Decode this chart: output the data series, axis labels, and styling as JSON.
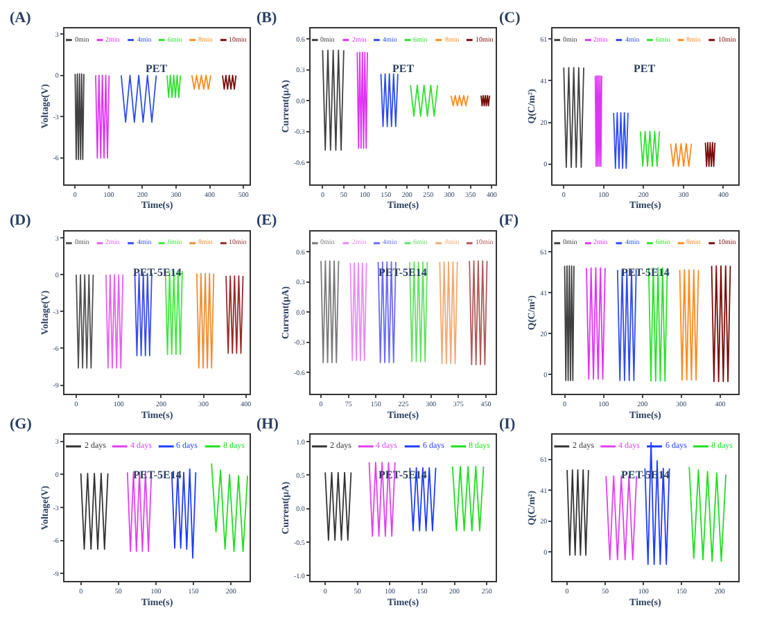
{
  "chart_data": [
    {
      "type": "line",
      "title": "PET",
      "xlabel": "Time(s)",
      "ylabel": "Voltage(V)",
      "annotations": [
        "(A)"
      ],
      "legend": "top",
      "xlim": [
        -32,
        519
      ],
      "xticks": [
        0,
        100,
        200,
        300,
        400,
        500
      ],
      "ylim": [
        -7.9,
        3.4
      ],
      "yticks": [
        3,
        0,
        -3,
        -6
      ],
      "series": [
        {
          "name": "0min",
          "color": "#404040",
          "x": [
            0,
            3.25,
            6.5,
            9.75,
            13,
            16.25,
            19.5,
            22.75,
            26
          ],
          "values": [
            0.1,
            -6.1,
            0.1,
            -6.1,
            0.1,
            -6.1,
            0.1,
            -6.1,
            0.1
          ]
        },
        {
          "name": "2min",
          "color": "#e033f5",
          "x": [
            61,
            66,
            71,
            76,
            81,
            86,
            91,
            96,
            101
          ],
          "values": [
            0,
            -6.0,
            0,
            -6.0,
            0,
            -6.0,
            0,
            -6.0,
            0
          ]
        },
        {
          "name": "4min",
          "color": "#2e4bf0",
          "x": [
            137,
            150,
            163,
            176,
            189,
            202,
            215,
            228,
            241
          ],
          "values": [
            0,
            -3.4,
            0,
            -3.4,
            0,
            -3.4,
            0,
            -3.4,
            0
          ]
        },
        {
          "name": "6min",
          "color": "#2ee02e",
          "x": [
            273,
            278,
            283,
            288,
            293,
            298,
            303,
            308,
            313
          ],
          "values": [
            0,
            -1.6,
            0,
            -1.6,
            0,
            -1.6,
            0,
            -1.6,
            0
          ]
        },
        {
          "name": "8min",
          "color": "#ff8a1c",
          "x": [
            347,
            354,
            361,
            368,
            375,
            382,
            389,
            396,
            403
          ],
          "values": [
            0,
            -1.0,
            0,
            -1.0,
            0,
            -1.0,
            0,
            -1.0,
            0
          ]
        },
        {
          "name": "10min",
          "color": "#7a0a0a",
          "x": [
            438,
            443,
            448,
            453,
            458,
            463,
            468,
            473,
            478
          ],
          "values": [
            0,
            -1.0,
            0,
            -1.0,
            0,
            -1.0,
            0,
            -1.0,
            0
          ]
        }
      ]
    },
    {
      "type": "line",
      "title": "PET",
      "xlabel": "Time(s)",
      "ylabel": "Current(μA)",
      "annotations": [
        "(B)"
      ],
      "legend": "top",
      "xlim": [
        -29,
        410
      ],
      "xticks": [
        0,
        50,
        100,
        150,
        200,
        250,
        300,
        350,
        400
      ],
      "ylim": [
        -0.81,
        0.7
      ],
      "yticks": [
        0.6,
        0.3,
        {
          "value": 0,
          "label": "0.0"
        },
        -0.3,
        -0.6
      ],
      "series": [
        {
          "name": "0min",
          "color": "#404040",
          "x": [
            0,
            6.25,
            12.5,
            18.75,
            25,
            31.25,
            37.5,
            43.75,
            50
          ],
          "values": [
            0.49,
            -0.48,
            0.49,
            -0.48,
            0.49,
            -0.48,
            0.49,
            -0.48,
            0.49
          ]
        },
        {
          "name": "2min",
          "color": "#e033f5",
          "x": [
            82,
            85,
            88,
            91,
            94,
            97,
            100,
            103,
            106
          ],
          "values": [
            0.47,
            -0.46,
            0.47,
            -0.46,
            0.47,
            -0.46,
            0.47,
            -0.46,
            0.47
          ]
        },
        {
          "name": "4min",
          "color": "#2e4bf0",
          "x": [
            138,
            143,
            148,
            153,
            158,
            163,
            168,
            173,
            178
          ],
          "values": [
            0.26,
            -0.25,
            0.26,
            -0.25,
            0.26,
            -0.25,
            0.26,
            -0.25,
            0.26
          ]
        },
        {
          "name": "6min",
          "color": "#2ee02e",
          "x": [
            208,
            216,
            224,
            232,
            240,
            248,
            256,
            264,
            272
          ],
          "values": [
            0.15,
            -0.15,
            0.15,
            -0.15,
            0.15,
            -0.15,
            0.15,
            -0.15,
            0.15
          ]
        },
        {
          "name": "8min",
          "color": "#ff8a1c",
          "x": [
            304,
            309,
            314,
            319,
            324,
            329,
            334,
            339,
            344
          ],
          "values": [
            0.05,
            -0.05,
            0.05,
            -0.05,
            0.05,
            -0.05,
            0.05,
            -0.05,
            0.05
          ]
        },
        {
          "name": "10min",
          "color": "#7a0a0a",
          "x": [
            375,
            377.5,
            380,
            382.5,
            385,
            387.5,
            390,
            392.5,
            395
          ],
          "values": [
            0.05,
            -0.05,
            0.05,
            -0.05,
            0.05,
            -0.05,
            0.05,
            -0.05,
            0.05
          ]
        }
      ]
    },
    {
      "type": "line",
      "title": "PET",
      "xlabel": "Time(s)",
      "ylabel": "Q(C/m²)",
      "annotations": [
        "(C)"
      ],
      "legend": "top",
      "xlim": [
        -28,
        437
      ],
      "xticks": [
        0,
        100,
        200,
        300,
        400
      ],
      "ylim": [
        -9.7,
        66
      ],
      "yticks": [
        0,
        {
          "value": 20.3,
          "label": "20"
        },
        {
          "value": 40.7,
          "label": "41"
        },
        61
      ],
      "series": [
        {
          "name": "0min",
          "color": "#404040",
          "x": [
            0,
            6.25,
            12.5,
            18.75,
            25,
            31.25,
            37.5,
            43.75,
            50
          ],
          "values": [
            47,
            -1.5,
            47,
            -1.5,
            47,
            -1.5,
            47,
            -1.5,
            47
          ]
        },
        {
          "name": "2min",
          "color": "#e033f5",
          "x": [
            79,
            81,
            83,
            85,
            87,
            89,
            91,
            93,
            95
          ],
          "values": [
            43,
            -1,
            43,
            -1,
            43,
            -1,
            43,
            -1,
            43
          ]
        },
        {
          "name": "4min",
          "color": "#2e4bf0",
          "x": [
            125,
            129.5,
            134,
            138.5,
            143,
            147.5,
            152,
            156.5,
            161
          ],
          "values": [
            25,
            -2,
            25,
            -2,
            25,
            -2,
            25,
            -2,
            25
          ]
        },
        {
          "name": "6min",
          "color": "#2ee02e",
          "x": [
            192,
            198,
            204,
            210,
            216,
            222,
            228,
            234,
            240
          ],
          "values": [
            16,
            -1,
            16,
            -1,
            16,
            -1,
            16,
            -1,
            16
          ]
        },
        {
          "name": "8min",
          "color": "#ff8a1c",
          "x": [
            268,
            274.5,
            281,
            287.5,
            294,
            300.5,
            307,
            313.5,
            320
          ],
          "values": [
            10,
            -1,
            10,
            -1,
            10,
            -1,
            10,
            -1,
            10
          ]
        },
        {
          "name": "10min",
          "color": "#7a0a0a",
          "x": [
            355,
            358,
            361,
            364,
            367,
            370,
            373,
            376,
            379
          ],
          "values": [
            10.5,
            -1,
            10.5,
            -1,
            10.5,
            -1,
            10.5,
            -1,
            10.5
          ]
        }
      ]
    },
    {
      "type": "line",
      "title": "PET-5E14",
      "xlabel": "Time(s)",
      "ylabel": "Voltage(V)",
      "annotations": [
        "(D)"
      ],
      "legend": "top",
      "xlim": [
        -28,
        409
      ],
      "xticks": [
        0,
        100,
        200,
        300,
        400
      ],
      "ylim": [
        -9.7,
        3.5
      ],
      "yticks": [
        3,
        0,
        -3,
        -6,
        -9
      ],
      "series": [
        {
          "name": "0min",
          "color": "#505050",
          "x": [
            0,
            5,
            10,
            15,
            20,
            25,
            30,
            35,
            40
          ],
          "values": [
            0,
            -7.6,
            0,
            -7.6,
            0,
            -7.6,
            0,
            -7.6,
            0
          ]
        },
        {
          "name": "2min",
          "color": "#e860f0",
          "x": [
            70,
            75,
            80,
            85,
            90,
            95,
            100,
            105,
            110
          ],
          "values": [
            0,
            -7.6,
            0,
            -7.6,
            0,
            -7.6,
            0,
            -7.6,
            0
          ]
        },
        {
          "name": "4min",
          "color": "#3a4cf0",
          "x": [
            138,
            143,
            148,
            153,
            158,
            163,
            168,
            173,
            178
          ],
          "values": [
            0.1,
            -6.6,
            0.1,
            -6.6,
            0.1,
            -6.6,
            0.1,
            -6.6,
            0.1
          ]
        },
        {
          "name": "6min",
          "color": "#3ee83e",
          "x": [
            210,
            215,
            220,
            225,
            230,
            235,
            240,
            245,
            250
          ],
          "values": [
            0.3,
            -6.5,
            0.3,
            -6.5,
            0.3,
            -6.5,
            0.3,
            -6.5,
            0.3
          ]
        },
        {
          "name": "8min",
          "color": "#f08c30",
          "x": [
            284,
            289,
            294,
            299,
            304,
            309,
            314,
            319,
            324
          ],
          "values": [
            0.1,
            -7.6,
            0.1,
            -7.6,
            0.1,
            -7.6,
            0.1,
            -7.6,
            0.1
          ]
        },
        {
          "name": "10min",
          "color": "#9a2a2a",
          "x": [
            353,
            358,
            363,
            368,
            373,
            378,
            383,
            388,
            393
          ],
          "values": [
            -0.1,
            -6.4,
            -0.1,
            -6.4,
            -0.1,
            -6.4,
            -0.1,
            -6.4,
            -0.1
          ]
        }
      ]
    },
    {
      "type": "line",
      "title": "PET-5E14",
      "xlabel": "Time(s)",
      "ylabel": "Current(μA)",
      "annotations": [
        "(E)"
      ],
      "legend": "top",
      "xlim": [
        -29,
        477
      ],
      "xticks": [
        0,
        75,
        150,
        225,
        300,
        375,
        450
      ],
      "ylim": [
        -0.81,
        0.8
      ],
      "yticks": [
        0.6,
        0.3,
        {
          "value": 0,
          "label": "0.0"
        },
        -0.3,
        -0.6
      ],
      "series": [
        {
          "name": "0min",
          "color": "#7a7a7a",
          "x": [
            0,
            6,
            12,
            18,
            24,
            30,
            36,
            42,
            48
          ],
          "values": [
            0.51,
            -0.5,
            0.51,
            -0.5,
            0.51,
            -0.5,
            0.51,
            -0.5,
            0.51
          ]
        },
        {
          "name": "2min",
          "color": "#e88af5",
          "x": [
            80,
            85.5,
            91,
            96.5,
            102,
            107.5,
            113,
            118.5,
            124
          ],
          "values": [
            0.49,
            -0.48,
            0.49,
            -0.48,
            0.49,
            -0.48,
            0.49,
            -0.48,
            0.49
          ]
        },
        {
          "name": "4min",
          "color": "#6a6af5",
          "x": [
            156,
            162,
            168,
            174,
            180,
            186,
            192,
            198,
            204
          ],
          "values": [
            0.5,
            -0.5,
            0.5,
            -0.5,
            0.5,
            -0.5,
            0.5,
            -0.5,
            0.5
          ]
        },
        {
          "name": "6min",
          "color": "#66e066",
          "x": [
            242,
            248,
            254,
            260,
            266,
            272,
            278,
            284,
            290
          ],
          "values": [
            0.5,
            -0.49,
            0.5,
            -0.49,
            0.5,
            -0.49,
            0.5,
            -0.49,
            0.5
          ]
        },
        {
          "name": "8min",
          "color": "#f4a870",
          "x": [
            324,
            330,
            336,
            342,
            348,
            354,
            360,
            366,
            372
          ],
          "values": [
            0.5,
            -0.51,
            0.5,
            -0.51,
            0.5,
            -0.51,
            0.5,
            -0.51,
            0.5
          ]
        },
        {
          "name": "10min",
          "color": "#b05a5a",
          "x": [
            405,
            411,
            417,
            423,
            429,
            435,
            441,
            447,
            453
          ],
          "values": [
            0.51,
            -0.52,
            0.51,
            -0.52,
            0.51,
            -0.52,
            0.51,
            -0.52,
            0.51
          ]
        }
      ]
    },
    {
      "type": "line",
      "title": "PET-5E14",
      "xlabel": "Time(s)",
      "ylabel": "Q(C/m²)",
      "annotations": [
        "(F)"
      ],
      "legend": "top",
      "xlim": [
        -31,
        446
      ],
      "xticks": [
        0,
        100,
        200,
        300,
        400
      ],
      "ylim": [
        -9.6,
        71
      ],
      "yticks": [
        0,
        {
          "value": 20.3,
          "label": "20"
        },
        {
          "value": 40.7,
          "label": "41"
        },
        61
      ],
      "series": [
        {
          "name": "0min",
          "color": "#404040",
          "x": [
            0,
            3,
            6,
            9,
            12,
            15,
            18,
            21,
            24
          ],
          "values": [
            54,
            -3,
            54,
            -3,
            54,
            -3,
            54,
            -3,
            54
          ]
        },
        {
          "name": "2min",
          "color": "#e033f5",
          "x": [
            56,
            62,
            68,
            74,
            80,
            86,
            92,
            98,
            104
          ],
          "values": [
            53,
            -2.3,
            53,
            -2.3,
            53,
            -2.3,
            53,
            -2.3,
            53
          ]
        },
        {
          "name": "4min",
          "color": "#2e4bf0",
          "x": [
            136,
            142,
            148,
            154,
            160,
            166,
            172,
            178,
            184
          ],
          "values": [
            52,
            -3,
            52,
            -3,
            52,
            -3,
            52,
            -3,
            52
          ]
        },
        {
          "name": "6min",
          "color": "#2ee02e",
          "x": [
            216,
            222,
            228,
            234,
            240,
            246,
            252,
            258,
            264
          ],
          "values": [
            53,
            -3.3,
            53,
            -3.3,
            53,
            -3.3,
            53,
            -3.3,
            53
          ]
        },
        {
          "name": "8min",
          "color": "#ff8a1c",
          "x": [
            296,
            302,
            308,
            314,
            320,
            326,
            332,
            338,
            344
          ],
          "values": [
            52,
            -2.8,
            52,
            -2.8,
            52,
            -2.8,
            52,
            -2.8,
            52
          ]
        },
        {
          "name": "10min",
          "color": "#7a0a0a",
          "x": [
            378,
            384,
            390,
            396,
            402,
            408,
            414,
            420,
            426
          ],
          "values": [
            54,
            -3.5,
            54,
            -3.5,
            54,
            -3.5,
            54,
            -3.5,
            54
          ]
        }
      ]
    },
    {
      "type": "line",
      "title": "PET-5E14",
      "xlabel": "Time(s)",
      "ylabel": "Voltage(V)",
      "annotations": [
        "(G)"
      ],
      "legend": "top",
      "xlim": [
        -22,
        225
      ],
      "xticks": [
        0,
        50,
        100,
        150,
        200
      ],
      "ylim": [
        -9.7,
        3.6
      ],
      "yticks": [
        3,
        0,
        -3,
        -6,
        -9
      ],
      "series": [
        {
          "name": "2 days",
          "color": "#333333",
          "x": [
            0,
            4.5,
            9,
            13.5,
            18,
            22.5,
            27,
            31.5,
            36
          ],
          "values": [
            0.1,
            -6.8,
            0.1,
            -6.8,
            0.1,
            -6.8,
            0.1,
            -6.8,
            0.1
          ]
        },
        {
          "name": "4 days",
          "color": "#e040f0",
          "x": [
            62,
            66,
            70,
            74,
            78,
            82,
            86,
            90,
            94
          ],
          "values": [
            0.2,
            -7.0,
            0.2,
            -7.0,
            0.2,
            -7.0,
            0.2,
            -7.0,
            0.2
          ]
        },
        {
          "name": "6 days",
          "color": "#1f3cff",
          "x": [
            121,
            125,
            129,
            133,
            137,
            141,
            145,
            149,
            153
          ],
          "values": [
            0.2,
            -6.7,
            0.2,
            -6.7,
            0.2,
            -6.8,
            0.5,
            -7.6,
            0.2
          ]
        },
        {
          "name": "8 days",
          "color": "#20dd20",
          "x": [
            174,
            180,
            186,
            192,
            198,
            204,
            210,
            216,
            222
          ],
          "values": [
            1.0,
            -5.2,
            0.4,
            -6.8,
            0.0,
            -7.0,
            -0.1,
            -7.0,
            -0.1
          ]
        }
      ]
    },
    {
      "type": "line",
      "title": "PET-5E14",
      "xlabel": "Time(s)",
      "ylabel": "Current(μA)",
      "annotations": [
        "(H)"
      ],
      "legend": "top",
      "xlim": [
        -23,
        264
      ],
      "xticks": [
        0,
        50,
        100,
        150,
        200,
        250
      ],
      "ylim": [
        -1.08,
        1.1
      ],
      "yticks": [
        {
          "value": 1,
          "label": "1.0"
        },
        0.5,
        {
          "value": 0,
          "label": "0.0"
        },
        -0.5,
        {
          "value": -1,
          "label": "-1.0"
        }
      ],
      "series": [
        {
          "name": "2 days",
          "color": "#333333",
          "x": [
            0,
            5,
            10,
            15,
            20,
            25,
            30,
            35,
            40
          ],
          "values": [
            0.54,
            -0.47,
            0.54,
            -0.47,
            0.54,
            -0.47,
            0.54,
            -0.47,
            0.54
          ]
        },
        {
          "name": "4 days",
          "color": "#e040f0",
          "x": [
            68,
            73,
            78,
            83,
            88,
            93,
            98,
            103,
            108
          ],
          "values": [
            0.69,
            -0.41,
            0.69,
            -0.41,
            0.69,
            -0.41,
            0.69,
            -0.41,
            0.69
          ]
        },
        {
          "name": "6 days",
          "color": "#1f3cff",
          "x": [
            131,
            136,
            141,
            146,
            151,
            156,
            161,
            166,
            171
          ],
          "values": [
            0.61,
            -0.33,
            0.61,
            -0.33,
            0.61,
            -0.33,
            0.61,
            -0.33,
            0.61
          ]
        },
        {
          "name": "8 days",
          "color": "#20dd20",
          "x": [
            197,
            203,
            209,
            215,
            221,
            227,
            233,
            239,
            245
          ],
          "values": [
            0.63,
            -0.33,
            0.63,
            -0.33,
            0.63,
            -0.33,
            0.63,
            -0.33,
            0.63
          ]
        }
      ]
    },
    {
      "type": "line",
      "title": "PET-5E14",
      "xlabel": "Time(s)",
      "ylabel": "Q(C/m²)",
      "annotations": [
        "(I)"
      ],
      "legend": "top",
      "xlim": [
        -19,
        224
      ],
      "xticks": [
        0,
        50,
        100,
        150,
        200
      ],
      "ylim": [
        -19,
        77
      ],
      "yticks": [
        0,
        {
          "value": 20.3,
          "label": "20"
        },
        {
          "value": 40.7,
          "label": "41"
        },
        61
      ],
      "series": [
        {
          "name": "2 days",
          "color": "#333333",
          "x": [
            0,
            3.5,
            7,
            10.5,
            14,
            17.5,
            21,
            24.5,
            28
          ],
          "values": [
            54,
            -2,
            54,
            -2,
            54,
            -2,
            54,
            -2,
            54
          ]
        },
        {
          "name": "4 days",
          "color": "#e040f0",
          "x": [
            51,
            56,
            61,
            66,
            71,
            76,
            81,
            86,
            91
          ],
          "values": [
            50,
            -5,
            50,
            -5,
            50,
            -5,
            50,
            -5,
            50
          ]
        },
        {
          "name": "6 days",
          "color": "#1f3cff",
          "x": [
            102,
            106,
            110,
            114,
            118,
            122,
            126,
            130,
            134
          ],
          "values": [
            55,
            -8,
            72,
            -8,
            60,
            -8,
            55,
            -8,
            55
          ]
        },
        {
          "name": "8 days",
          "color": "#20dd20",
          "x": [
            160,
            166,
            172,
            178,
            184,
            190,
            196,
            202,
            208
          ],
          "values": [
            56,
            -4,
            54,
            -5,
            53,
            -6,
            52,
            -6,
            51
          ]
        }
      ]
    }
  ]
}
